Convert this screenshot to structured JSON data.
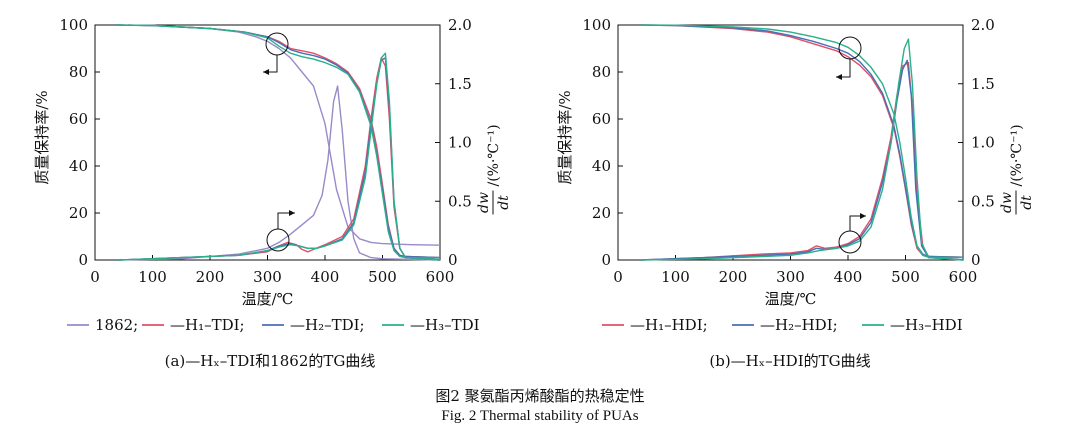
{
  "figure": {
    "caption_zh": "图2   聚氨酯丙烯酸酯的热稳定性",
    "caption_en": "Fig. 2   Thermal stability of PUAs"
  },
  "chart_data": [
    {
      "type": "line",
      "panel_label": "(a)—Hₓ–TDI和1862的TG曲线",
      "xlabel": "温度/℃",
      "ylabel_left": "质量保持率/%",
      "ylabel_right_num": "dw",
      "ylabel_right_den": "dt",
      "ylabel_right_unit": "/(%·℃⁻¹)",
      "xlim": [
        0,
        600
      ],
      "ylim_left": [
        0,
        100
      ],
      "ylim_right": [
        0,
        2.0
      ],
      "x_ticks": [
        "0",
        "100",
        "200",
        "300",
        "400",
        "500",
        "600"
      ],
      "yleft_ticks": [
        "0",
        "20",
        "40",
        "60",
        "80",
        "100"
      ],
      "yright_ticks": [
        "0",
        "0.5",
        "1.0",
        "1.5",
        "2.0"
      ],
      "legend": [
        "1862;",
        "—H₁–TDI;",
        "—H₂–TDI;",
        "—H₃–TDI"
      ],
      "series": [
        {
          "name": "1862",
          "axis": "left",
          "color": "#9a8ac8",
          "x": [
            40,
            100,
            200,
            250,
            280,
            300,
            320,
            340,
            360,
            380,
            400,
            420,
            440,
            460,
            480,
            500,
            550,
            600
          ],
          "y": [
            100,
            99.8,
            98.5,
            97,
            95,
            93,
            90,
            86,
            80,
            74,
            58,
            30,
            14,
            9,
            7.5,
            7,
            6.5,
            6.3
          ]
        },
        {
          "name": "1862",
          "axis": "right",
          "color": "#9a8ac8",
          "x": [
            40,
            150,
            250,
            300,
            320,
            340,
            360,
            380,
            395,
            405,
            415,
            422,
            430,
            440,
            450,
            460,
            480,
            500,
            600
          ],
          "y": [
            0,
            0.01,
            0.05,
            0.1,
            0.15,
            0.22,
            0.3,
            0.38,
            0.55,
            0.85,
            1.35,
            1.48,
            1.1,
            0.5,
            0.18,
            0.06,
            0.02,
            0.01,
            0
          ]
        },
        {
          "name": "H1-TDI",
          "axis": "left",
          "color": "#e0506a",
          "x": [
            40,
            100,
            200,
            260,
            300,
            320,
            340,
            360,
            380,
            400,
            420,
            440,
            460,
            480,
            490,
            500,
            510,
            520,
            530,
            540,
            600
          ],
          "y": [
            100,
            99.8,
            98.5,
            97,
            95,
            93,
            90,
            89,
            88,
            86,
            83.5,
            80,
            73,
            60,
            48,
            32,
            15,
            5,
            2,
            1.5,
            1
          ]
        },
        {
          "name": "H1-TDI",
          "axis": "right",
          "color": "#e0506a",
          "x": [
            40,
            150,
            250,
            300,
            320,
            335,
            350,
            360,
            370,
            380,
            400,
            430,
            450,
            470,
            480,
            490,
            498,
            505,
            512,
            520,
            530,
            540,
            600
          ],
          "y": [
            0,
            0.02,
            0.04,
            0.07,
            0.12,
            0.15,
            0.13,
            0.09,
            0.07,
            0.09,
            0.13,
            0.2,
            0.35,
            0.8,
            1.2,
            1.55,
            1.72,
            1.65,
            1.2,
            0.45,
            0.1,
            0.02,
            0
          ]
        },
        {
          "name": "H2-TDI",
          "axis": "left",
          "color": "#4a6fb5",
          "x": [
            40,
            100,
            200,
            260,
            300,
            320,
            340,
            360,
            380,
            400,
            420,
            440,
            460,
            480,
            490,
            500,
            510,
            520,
            530,
            540,
            600
          ],
          "y": [
            100,
            99.8,
            98.5,
            97,
            95,
            92.5,
            89.5,
            88,
            87,
            85.5,
            83,
            79.5,
            72,
            58,
            45,
            30,
            14,
            5,
            2,
            1.5,
            1
          ]
        },
        {
          "name": "H2-TDI",
          "axis": "right",
          "color": "#4a6fb5",
          "x": [
            40,
            150,
            250,
            300,
            320,
            340,
            355,
            370,
            385,
            400,
            430,
            450,
            470,
            480,
            490,
            498,
            505,
            512,
            520,
            530,
            540,
            600
          ],
          "y": [
            0,
            0.02,
            0.04,
            0.08,
            0.12,
            0.14,
            0.12,
            0.1,
            0.1,
            0.12,
            0.18,
            0.32,
            0.75,
            1.15,
            1.5,
            1.7,
            1.72,
            1.3,
            0.5,
            0.1,
            0.02,
            0
          ]
        },
        {
          "name": "H3-TDI",
          "axis": "left",
          "color": "#2ab08a",
          "x": [
            40,
            100,
            200,
            260,
            300,
            320,
            340,
            360,
            380,
            400,
            420,
            440,
            460,
            480,
            490,
            500,
            510,
            520,
            530,
            540,
            600
          ],
          "y": [
            100,
            99.8,
            98.5,
            97,
            94.5,
            91,
            88,
            86.5,
            85.5,
            84,
            82,
            79,
            71.5,
            57,
            44,
            28,
            12,
            4,
            1.5,
            1,
            0.8
          ]
        },
        {
          "name": "H3-TDI",
          "axis": "right",
          "color": "#2ab08a",
          "x": [
            40,
            150,
            250,
            300,
            320,
            340,
            355,
            370,
            385,
            400,
            430,
            450,
            470,
            480,
            490,
            498,
            505,
            512,
            520,
            530,
            540,
            600
          ],
          "y": [
            0,
            0.02,
            0.04,
            0.08,
            0.11,
            0.13,
            0.12,
            0.1,
            0.1,
            0.12,
            0.17,
            0.3,
            0.7,
            1.1,
            1.5,
            1.72,
            1.76,
            1.35,
            0.5,
            0.1,
            0.02,
            0
          ]
        }
      ]
    },
    {
      "type": "line",
      "panel_label": "(b)—Hₓ–HDI的TG曲线",
      "xlabel": "温度/℃",
      "ylabel_left": "质量保持率/%",
      "ylabel_right_num": "dw",
      "ylabel_right_den": "dt",
      "ylabel_right_unit": "/(%·℃⁻¹)",
      "xlim": [
        0,
        600
      ],
      "ylim_left": [
        0,
        100
      ],
      "ylim_right": [
        0,
        2.0
      ],
      "x_ticks": [
        "0",
        "100",
        "200",
        "300",
        "400",
        "500",
        "600"
      ],
      "yleft_ticks": [
        "0",
        "20",
        "40",
        "60",
        "80",
        "100"
      ],
      "yright_ticks": [
        "0",
        "0.5",
        "1.0",
        "1.5",
        "2.0"
      ],
      "legend": [
        "—H₁–HDI;",
        "—H₂–HDI;",
        "—H₃–HDI"
      ],
      "series": [
        {
          "name": "H1-HDI",
          "axis": "left",
          "color": "#e0506a",
          "x": [
            40,
            100,
            200,
            260,
            300,
            340,
            380,
            400,
            420,
            440,
            460,
            480,
            490,
            500,
            510,
            520,
            530,
            540,
            600
          ],
          "y": [
            100,
            99.8,
            98.5,
            97,
            95,
            92,
            89,
            86.5,
            83,
            78,
            70,
            56,
            44,
            30,
            15,
            5,
            2,
            1.5,
            1.2
          ]
        },
        {
          "name": "H1-HDI",
          "axis": "right",
          "color": "#e0506a",
          "x": [
            40,
            150,
            250,
            300,
            330,
            345,
            360,
            380,
            400,
            420,
            440,
            460,
            475,
            485,
            495,
            505,
            512,
            520,
            530,
            540,
            600
          ],
          "y": [
            0,
            0.02,
            0.05,
            0.06,
            0.08,
            0.12,
            0.1,
            0.11,
            0.14,
            0.2,
            0.35,
            0.7,
            1.05,
            1.4,
            1.65,
            1.68,
            1.3,
            0.55,
            0.12,
            0.03,
            0
          ]
        },
        {
          "name": "H2-HDI",
          "axis": "left",
          "color": "#4a6fb5",
          "x": [
            40,
            100,
            200,
            260,
            300,
            340,
            380,
            400,
            420,
            440,
            460,
            480,
            490,
            500,
            510,
            520,
            530,
            540,
            600
          ],
          "y": [
            100,
            99.8,
            98.8,
            97.5,
            95.5,
            93,
            90,
            88,
            84.5,
            79,
            71,
            57,
            45,
            31,
            16,
            6,
            2.5,
            1.5,
            1.2
          ]
        },
        {
          "name": "H2-HDI",
          "axis": "right",
          "color": "#4a6fb5",
          "x": [
            40,
            150,
            250,
            300,
            330,
            345,
            360,
            380,
            400,
            420,
            440,
            460,
            475,
            485,
            495,
            503,
            510,
            518,
            528,
            540,
            600
          ],
          "y": [
            0,
            0.02,
            0.04,
            0.05,
            0.07,
            0.1,
            0.09,
            0.1,
            0.13,
            0.18,
            0.32,
            0.66,
            1.0,
            1.35,
            1.62,
            1.7,
            1.4,
            0.6,
            0.12,
            0.02,
            0
          ]
        },
        {
          "name": "H3-HDI",
          "axis": "left",
          "color": "#2ab08a",
          "x": [
            40,
            100,
            200,
            260,
            300,
            340,
            380,
            400,
            420,
            440,
            460,
            480,
            490,
            500,
            510,
            520,
            530,
            540,
            600
          ],
          "y": [
            100,
            99.9,
            99.2,
            98.3,
            97,
            95,
            92.5,
            90.5,
            87,
            82,
            75,
            62,
            50,
            35,
            18,
            6,
            2,
            1.2,
            1
          ]
        },
        {
          "name": "H3-HDI",
          "axis": "right",
          "color": "#2ab08a",
          "x": [
            40,
            150,
            250,
            300,
            330,
            350,
            380,
            400,
            420,
            440,
            460,
            475,
            488,
            498,
            505,
            512,
            520,
            528,
            540,
            600
          ],
          "y": [
            0,
            0.01,
            0.03,
            0.04,
            0.06,
            0.08,
            0.1,
            0.12,
            0.16,
            0.28,
            0.6,
            1.0,
            1.5,
            1.8,
            1.88,
            1.5,
            0.7,
            0.15,
            0.02,
            0
          ]
        }
      ]
    }
  ]
}
